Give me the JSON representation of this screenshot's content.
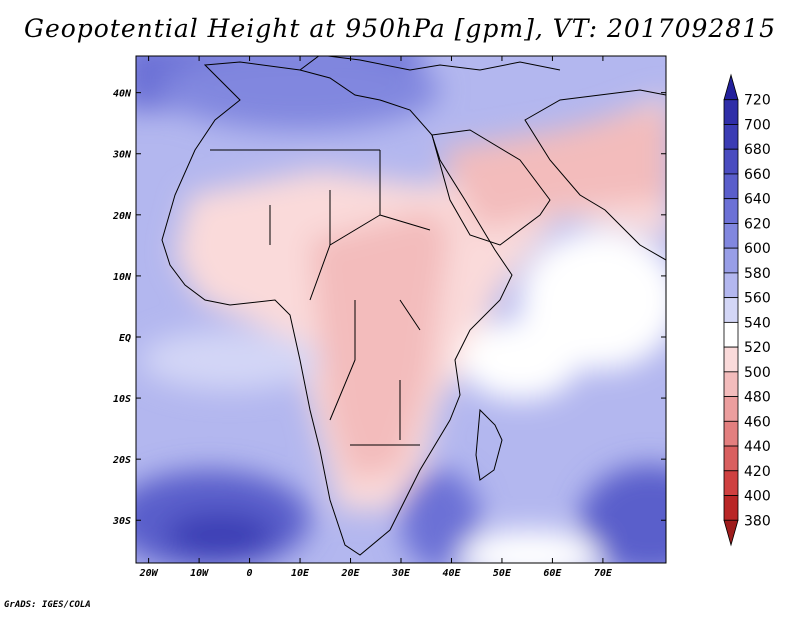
{
  "title": "Geopotential Height at 950hPa [gpm], VT: 2017092815",
  "credit": "GrADS: IGES/COLA",
  "lat_labels": [
    "40N",
    "30N",
    "20N",
    "10N",
    "EQ",
    "10S",
    "20S",
    "30S"
  ],
  "lat_values": [
    40,
    30,
    20,
    10,
    0,
    -10,
    -20,
    -30
  ],
  "lon_labels": [
    "20W",
    "10W",
    "0",
    "10E",
    "20E",
    "30E",
    "40E",
    "50E",
    "60E",
    "70E"
  ],
  "lon_values": [
    -20,
    -10,
    0,
    10,
    20,
    30,
    40,
    50,
    60,
    70
  ],
  "map_extent": {
    "lon_min": -22.5,
    "lon_max": 82.5,
    "lat_min": -37,
    "lat_max": 46
  },
  "colorbar": {
    "labels": [
      "720",
      "700",
      "680",
      "660",
      "640",
      "620",
      "600",
      "580",
      "560",
      "540",
      "520",
      "500",
      "480",
      "460",
      "440",
      "420",
      "400",
      "380"
    ],
    "colors": [
      "#23209c",
      "#2f2ea8",
      "#3b3cb4",
      "#4a4cc0",
      "#5a5ecb",
      "#6c71d6",
      "#8187df",
      "#989ee7",
      "#b3b7ef",
      "#d3d6f6",
      "#ffffff",
      "#fadada",
      "#f3bcbc",
      "#ec9e9e",
      "#e37f7f",
      "#d95f5f",
      "#cf4040",
      "#b92626",
      "#9e1c1c"
    ]
  }
}
